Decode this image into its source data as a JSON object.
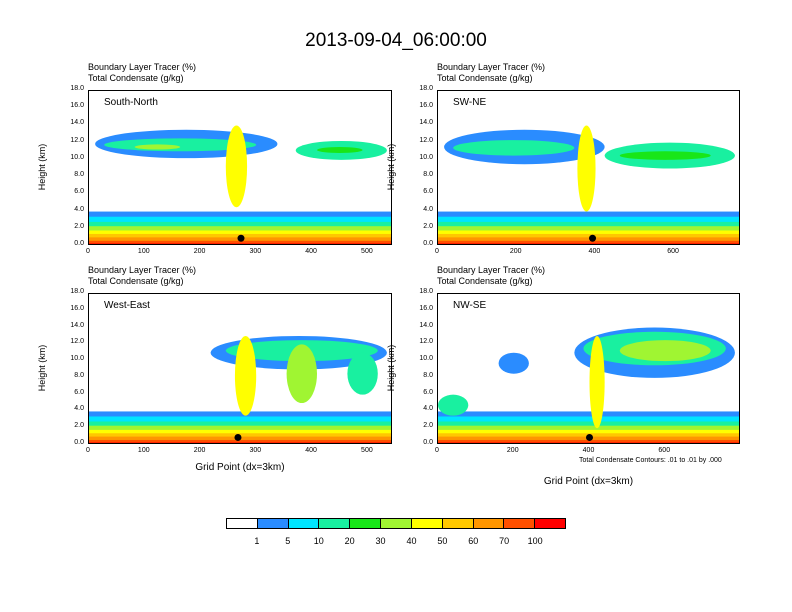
{
  "title": "2013-09-04_06:00:00",
  "chart_data": [
    {
      "type": "heatmap",
      "panel_label": "South-North",
      "header": [
        "Boundary Layer Tracer   (%)",
        "Total Condensate   (g/kg)"
      ],
      "ylabel": "Height (km)",
      "yticks": [
        "0.0",
        "2.0",
        "4.0",
        "6.0",
        "8.0",
        "10.0",
        "12.0",
        "14.0",
        "16.0",
        "18.0"
      ],
      "ylim": [
        0,
        18
      ],
      "xticks": [
        "0",
        "100",
        "200",
        "300",
        "400",
        "500"
      ],
      "xlim": [
        0,
        545
      ],
      "xlabel": ""
    },
    {
      "type": "heatmap",
      "panel_label": "SW-NE",
      "header": [
        "Boundary Layer Tracer   (%)",
        "Total Condensate   (g/kg)"
      ],
      "ylabel": "Height (km)",
      "yticks": [
        "0.0",
        "2.0",
        "4.0",
        "6.0",
        "8.0",
        "10.0",
        "12.0",
        "14.0",
        "16.0",
        "18.0"
      ],
      "ylim": [
        0,
        18
      ],
      "xticks": [
        "0",
        "200",
        "400",
        "600"
      ],
      "xlim": [
        0,
        770
      ],
      "xlabel": ""
    },
    {
      "type": "heatmap",
      "panel_label": "West-East",
      "header": [
        "Boundary Layer Tracer   (%)",
        "Total Condensate   (g/kg)"
      ],
      "ylabel": "Height (km)",
      "yticks": [
        "0.0",
        "2.0",
        "4.0",
        "6.0",
        "8.0",
        "10.0",
        "12.0",
        "14.0",
        "16.0",
        "18.0"
      ],
      "ylim": [
        0,
        18
      ],
      "xticks": [
        "0",
        "100",
        "200",
        "300",
        "400",
        "500"
      ],
      "xlim": [
        0,
        545
      ],
      "xlabel": "Grid Point (dx=3km)"
    },
    {
      "type": "heatmap",
      "panel_label": "NW-SE",
      "header": [
        "Boundary Layer Tracer   (%)",
        "Total Condensate   (g/kg)"
      ],
      "ylabel": "Height (km)",
      "yticks": [
        "0.0",
        "2.0",
        "4.0",
        "6.0",
        "8.0",
        "10.0",
        "12.0",
        "14.0",
        "16.0",
        "18.0"
      ],
      "ylim": [
        0,
        18
      ],
      "xticks": [
        "0",
        "200",
        "400",
        "600"
      ],
      "xlim": [
        0,
        800
      ],
      "xlabel": "Grid Point (dx=3km)",
      "note": "Total Condensate Contours: .01 to .01 by .000"
    }
  ],
  "colorbar": {
    "labels": [
      "1",
      "5",
      "10",
      "20",
      "30",
      "40",
      "50",
      "60",
      "70",
      "100"
    ],
    "colors": [
      "#ffffff",
      "#2a8cff",
      "#00e5ff",
      "#19f0a0",
      "#19e619",
      "#a0f532",
      "#ffff00",
      "#ffc800",
      "#ff9600",
      "#ff5000",
      "#ff0000"
    ]
  }
}
